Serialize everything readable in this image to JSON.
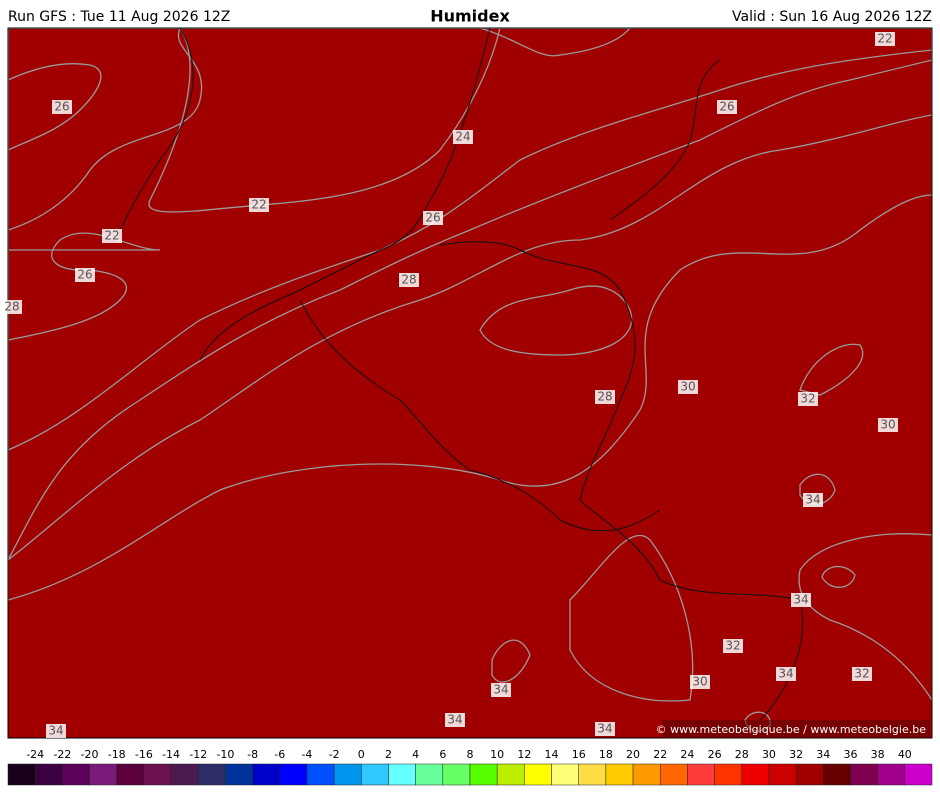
{
  "header": {
    "run": "Run GFS : Tue 11 Aug 2026 12Z",
    "title": "Humidex",
    "valid": "Valid : Sun 16 Aug 2026 12Z"
  },
  "contour_labels": [
    26,
    24,
    22,
    26,
    22,
    26,
    28,
    28,
    26,
    22,
    30,
    28,
    32,
    30,
    34,
    34,
    32,
    34,
    32,
    30,
    34,
    34,
    34,
    34
  ],
  "copyright": "© www.meteobelgique.be / www.meteobelgie.be",
  "colorbar": {
    "labels": [
      -24,
      -22,
      -20,
      -18,
      -16,
      -14,
      -12,
      -10,
      -8,
      -6,
      -4,
      -2,
      0,
      2,
      4,
      6,
      8,
      10,
      12,
      14,
      16,
      18,
      20,
      22,
      24,
      26,
      28,
      30,
      32,
      34,
      36,
      38,
      40
    ],
    "colors": [
      "#1a0018",
      "#3a0040",
      "#5c005c",
      "#7a1a7a",
      "#5c003c",
      "#6c1050",
      "#4c1a50",
      "#2c2c66",
      "#003399",
      "#0000cc",
      "#0000ff",
      "#0050ff",
      "#0096ee",
      "#30c8ff",
      "#66ffff",
      "#66ff99",
      "#66ff66",
      "#55ff00",
      "#bbee00",
      "#ffff00",
      "#ffff77",
      "#ffdd44",
      "#ffcc00",
      "#ff9900",
      "#ff6600",
      "#ff3c3c",
      "#ff3300",
      "#ee0000",
      "#cc0000",
      "#a00000",
      "#660000",
      "#800050",
      "#a0008a",
      "#cc00cc"
    ]
  }
}
